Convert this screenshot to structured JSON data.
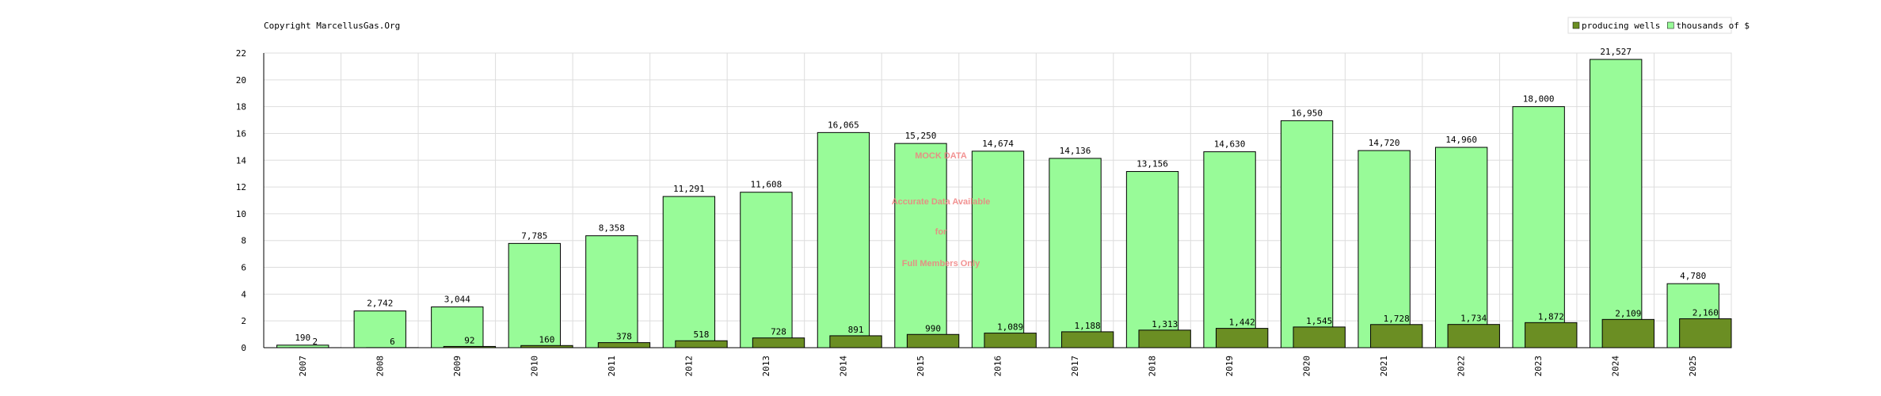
{
  "chart_data": {
    "type": "bar",
    "title": "Copyright MarcellusGas.Org",
    "categories": [
      "2007",
      "2008",
      "2009",
      "2010",
      "2011",
      "2012",
      "2013",
      "2014",
      "2015",
      "2016",
      "2017",
      "2018",
      "2019",
      "2020",
      "2021",
      "2022",
      "2023",
      "2024",
      "2025"
    ],
    "series": [
      {
        "name": "producing wells",
        "color": "#6b8e23",
        "values": [
          0.002,
          0.006,
          0.092,
          0.16,
          0.378,
          0.518,
          0.728,
          0.891,
          0.99,
          1.089,
          1.188,
          1.313,
          1.442,
          1.545,
          1.728,
          1.734,
          1.872,
          2.109,
          2.16
        ],
        "value_labels": [
          "2",
          "6",
          "92",
          "160",
          "378",
          "518",
          "728",
          "891",
          "990",
          "1,089",
          "1,188",
          "1,313",
          "1,442",
          "1,545",
          "1,728",
          "1,734",
          "1,872",
          "2,109",
          "2,160"
        ]
      },
      {
        "name": "thousands of $",
        "color": "#98fb98",
        "values": [
          0.19,
          2.742,
          3.044,
          7.785,
          8.358,
          11.291,
          11.608,
          16.065,
          15.25,
          14.674,
          14.136,
          13.156,
          14.63,
          16.95,
          14.72,
          14.96,
          18.0,
          21.527,
          4.78
        ],
        "value_labels": [
          "190",
          "2,742",
          "3,044",
          "7,785",
          "8,358",
          "11,291",
          "11,608",
          "16,065",
          "15,250",
          "14,674",
          "14,136",
          "13,156",
          "14,630",
          "16,950",
          "14,720",
          "14,960",
          "18,000",
          "21,527",
          "4,780"
        ]
      }
    ],
    "ylim": [
      0,
      22
    ],
    "yticks": [
      0,
      2,
      4,
      6,
      8,
      10,
      12,
      14,
      16,
      18,
      20,
      22
    ],
    "grid": true,
    "legend": "top-right",
    "annotations": [
      "MOCK DATA",
      "Accurate Data Available",
      "for",
      "Full Members Only"
    ]
  }
}
